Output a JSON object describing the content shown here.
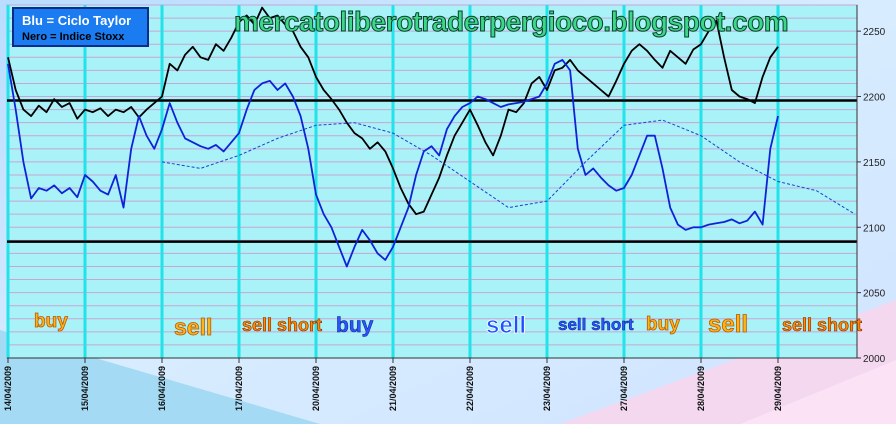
{
  "legend": {
    "blue": "Blu = Ciclo Taylor",
    "black": "Nero  = Indice Stoxx"
  },
  "watermark": "mercatoliberotraderpergioco.blogspot.com",
  "colors": {
    "plot_bg": "#a9f2f7",
    "hgrid": "#c9a5d6",
    "vgrid": "#22e2ea",
    "blue_series": "#1022d8",
    "black_series": "#000000",
    "dashed_series": "#1f3fd0",
    "ref_lines": "#000000"
  },
  "signals": [
    {
      "label": "buy",
      "style": "orange"
    },
    {
      "label": "sell",
      "style": "orange"
    },
    {
      "label": "sell short",
      "style": "red"
    },
    {
      "label": "buy",
      "style": "blue"
    },
    {
      "label": "sell",
      "style": "mid"
    },
    {
      "label": "sell short",
      "style": "blue"
    },
    {
      "label": "buy",
      "style": "orange"
    },
    {
      "label": "sell",
      "style": "orange"
    },
    {
      "label": "sell short",
      "style": "red"
    }
  ],
  "chart_data": {
    "type": "line",
    "title": "",
    "xlabel": "",
    "ylabel": "",
    "x_ticks": [
      "14/04/2009",
      "15/04/2009",
      "16/04/2009",
      "17/04/2009",
      "20/04/2009",
      "21/04/2009",
      "22/04/2009",
      "23/04/2009",
      "27/04/2009",
      "28/04/2009",
      "29/04/2009"
    ],
    "ylim": [
      2000,
      2270
    ],
    "y_ticks": [
      2000,
      2050,
      2100,
      2150,
      2200,
      2250
    ],
    "reference_lines": [
      2197,
      2089
    ],
    "grid": true,
    "legend_placement": "top-left",
    "series": [
      {
        "name": "Nero  = Indice Stoxx",
        "color": "black",
        "x": [
          0,
          0.1,
          0.2,
          0.3,
          0.4,
          0.5,
          0.6,
          0.7,
          0.8,
          0.9,
          1.0,
          1.1,
          1.2,
          1.3,
          1.4,
          1.5,
          1.6,
          1.7,
          1.8,
          1.9,
          2.0,
          2.1,
          2.2,
          2.3,
          2.4,
          2.5,
          2.6,
          2.7,
          2.8,
          2.9,
          3.0,
          3.1,
          3.2,
          3.3,
          3.4,
          3.5,
          3.6,
          3.7,
          3.8,
          3.9,
          4.0,
          4.1,
          4.2,
          4.3,
          4.4,
          4.5,
          4.6,
          4.7,
          4.8,
          4.9,
          5.0,
          5.1,
          5.2,
          5.3,
          5.4,
          5.5,
          5.6,
          5.7,
          5.8,
          5.9,
          6.0,
          6.1,
          6.2,
          6.3,
          6.4,
          6.5,
          6.6,
          6.7,
          6.8,
          6.9,
          7.0,
          7.1,
          7.2,
          7.3,
          7.4,
          7.5,
          7.6,
          7.7,
          7.8,
          7.9,
          8.0,
          8.1,
          8.2,
          8.3,
          8.4,
          8.5,
          8.6,
          8.7,
          8.8,
          8.9,
          9.0,
          9.1,
          9.2,
          9.3,
          9.4,
          9.5,
          9.6,
          9.7,
          9.8,
          9.9,
          10.0
        ],
        "y": [
          2230,
          2205,
          2190,
          2185,
          2193,
          2188,
          2198,
          2192,
          2195,
          2183,
          2190,
          2188,
          2191,
          2185,
          2190,
          2188,
          2192,
          2184,
          2190,
          2195,
          2200,
          2225,
          2220,
          2232,
          2238,
          2230,
          2228,
          2240,
          2235,
          2245,
          2257,
          2262,
          2255,
          2268,
          2260,
          2262,
          2255,
          2250,
          2238,
          2230,
          2215,
          2205,
          2198,
          2190,
          2180,
          2172,
          2168,
          2160,
          2165,
          2158,
          2145,
          2130,
          2118,
          2110,
          2112,
          2125,
          2138,
          2155,
          2170,
          2180,
          2190,
          2178,
          2165,
          2155,
          2170,
          2190,
          2188,
          2195,
          2210,
          2215,
          2205,
          2220,
          2222,
          2228,
          2220,
          2215,
          2210,
          2205,
          2200,
          2212,
          2225,
          2235,
          2240,
          2235,
          2228,
          2222,
          2235,
          2230,
          2225,
          2236,
          2240,
          2250,
          2258,
          2230,
          2205,
          2200,
          2198,
          2195,
          2215,
          2230,
          2238
        ]
      },
      {
        "name": "Blu = Ciclo Taylor",
        "color": "blue",
        "x": [
          0,
          0.1,
          0.2,
          0.3,
          0.4,
          0.5,
          0.6,
          0.7,
          0.8,
          0.9,
          1.0,
          1.1,
          1.2,
          1.3,
          1.4,
          1.5,
          1.6,
          1.7,
          1.8,
          1.9,
          2.0,
          2.1,
          2.2,
          2.3,
          2.4,
          2.5,
          2.6,
          2.7,
          2.8,
          2.9,
          3.0,
          3.1,
          3.2,
          3.3,
          3.4,
          3.5,
          3.6,
          3.7,
          3.8,
          3.9,
          4.0,
          4.1,
          4.2,
          4.3,
          4.4,
          4.5,
          4.6,
          4.7,
          4.8,
          4.9,
          5.0,
          5.1,
          5.2,
          5.3,
          5.4,
          5.5,
          5.6,
          5.7,
          5.8,
          5.9,
          6.0,
          6.1,
          6.2,
          6.3,
          6.4,
          6.5,
          6.6,
          6.7,
          6.8,
          6.9,
          7.0,
          7.1,
          7.2,
          7.3,
          7.4,
          7.5,
          7.6,
          7.7,
          7.8,
          7.9,
          8.0,
          8.1,
          8.2,
          8.3,
          8.4,
          8.5,
          8.6,
          8.7,
          8.8,
          8.9,
          9.0,
          9.1,
          9.2,
          9.3,
          9.4,
          9.5,
          9.6,
          9.7,
          9.8,
          9.9,
          10.0
        ],
        "y": [
          2225,
          2190,
          2150,
          2122,
          2130,
          2128,
          2132,
          2126,
          2130,
          2123,
          2140,
          2135,
          2128,
          2125,
          2140,
          2115,
          2160,
          2185,
          2170,
          2160,
          2175,
          2195,
          2180,
          2168,
          2165,
          2162,
          2160,
          2163,
          2158,
          2165,
          2172,
          2190,
          2205,
          2210,
          2212,
          2205,
          2210,
          2200,
          2185,
          2160,
          2125,
          2110,
          2100,
          2085,
          2070,
          2085,
          2098,
          2090,
          2080,
          2075,
          2085,
          2100,
          2115,
          2140,
          2158,
          2162,
          2155,
          2175,
          2185,
          2192,
          2195,
          2200,
          2198,
          2195,
          2192,
          2194,
          2195,
          2196,
          2198,
          2200,
          2210,
          2225,
          2228,
          2220,
          2160,
          2140,
          2145,
          2138,
          2132,
          2128,
          2130,
          2140,
          2155,
          2170,
          2170,
          2145,
          2115,
          2102,
          2098,
          2100,
          2100,
          2102,
          2103,
          2104,
          2106,
          2103,
          2105,
          2112,
          2102,
          2160,
          2185
        ]
      },
      {
        "name": "",
        "color": "blue-dashed",
        "x": [
          2.0,
          2.5,
          3.0,
          3.5,
          4.0,
          4.5,
          5.0,
          5.5,
          6.0,
          6.5,
          7.0,
          7.5,
          8.0,
          8.5,
          9.0,
          9.5,
          10.0,
          10.5,
          11.0
        ],
        "y": [
          2150,
          2145,
          2155,
          2168,
          2178,
          2180,
          2172,
          2155,
          2135,
          2115,
          2120,
          2150,
          2178,
          2182,
          2170,
          2150,
          2135,
          2128,
          2110
        ]
      }
    ]
  }
}
